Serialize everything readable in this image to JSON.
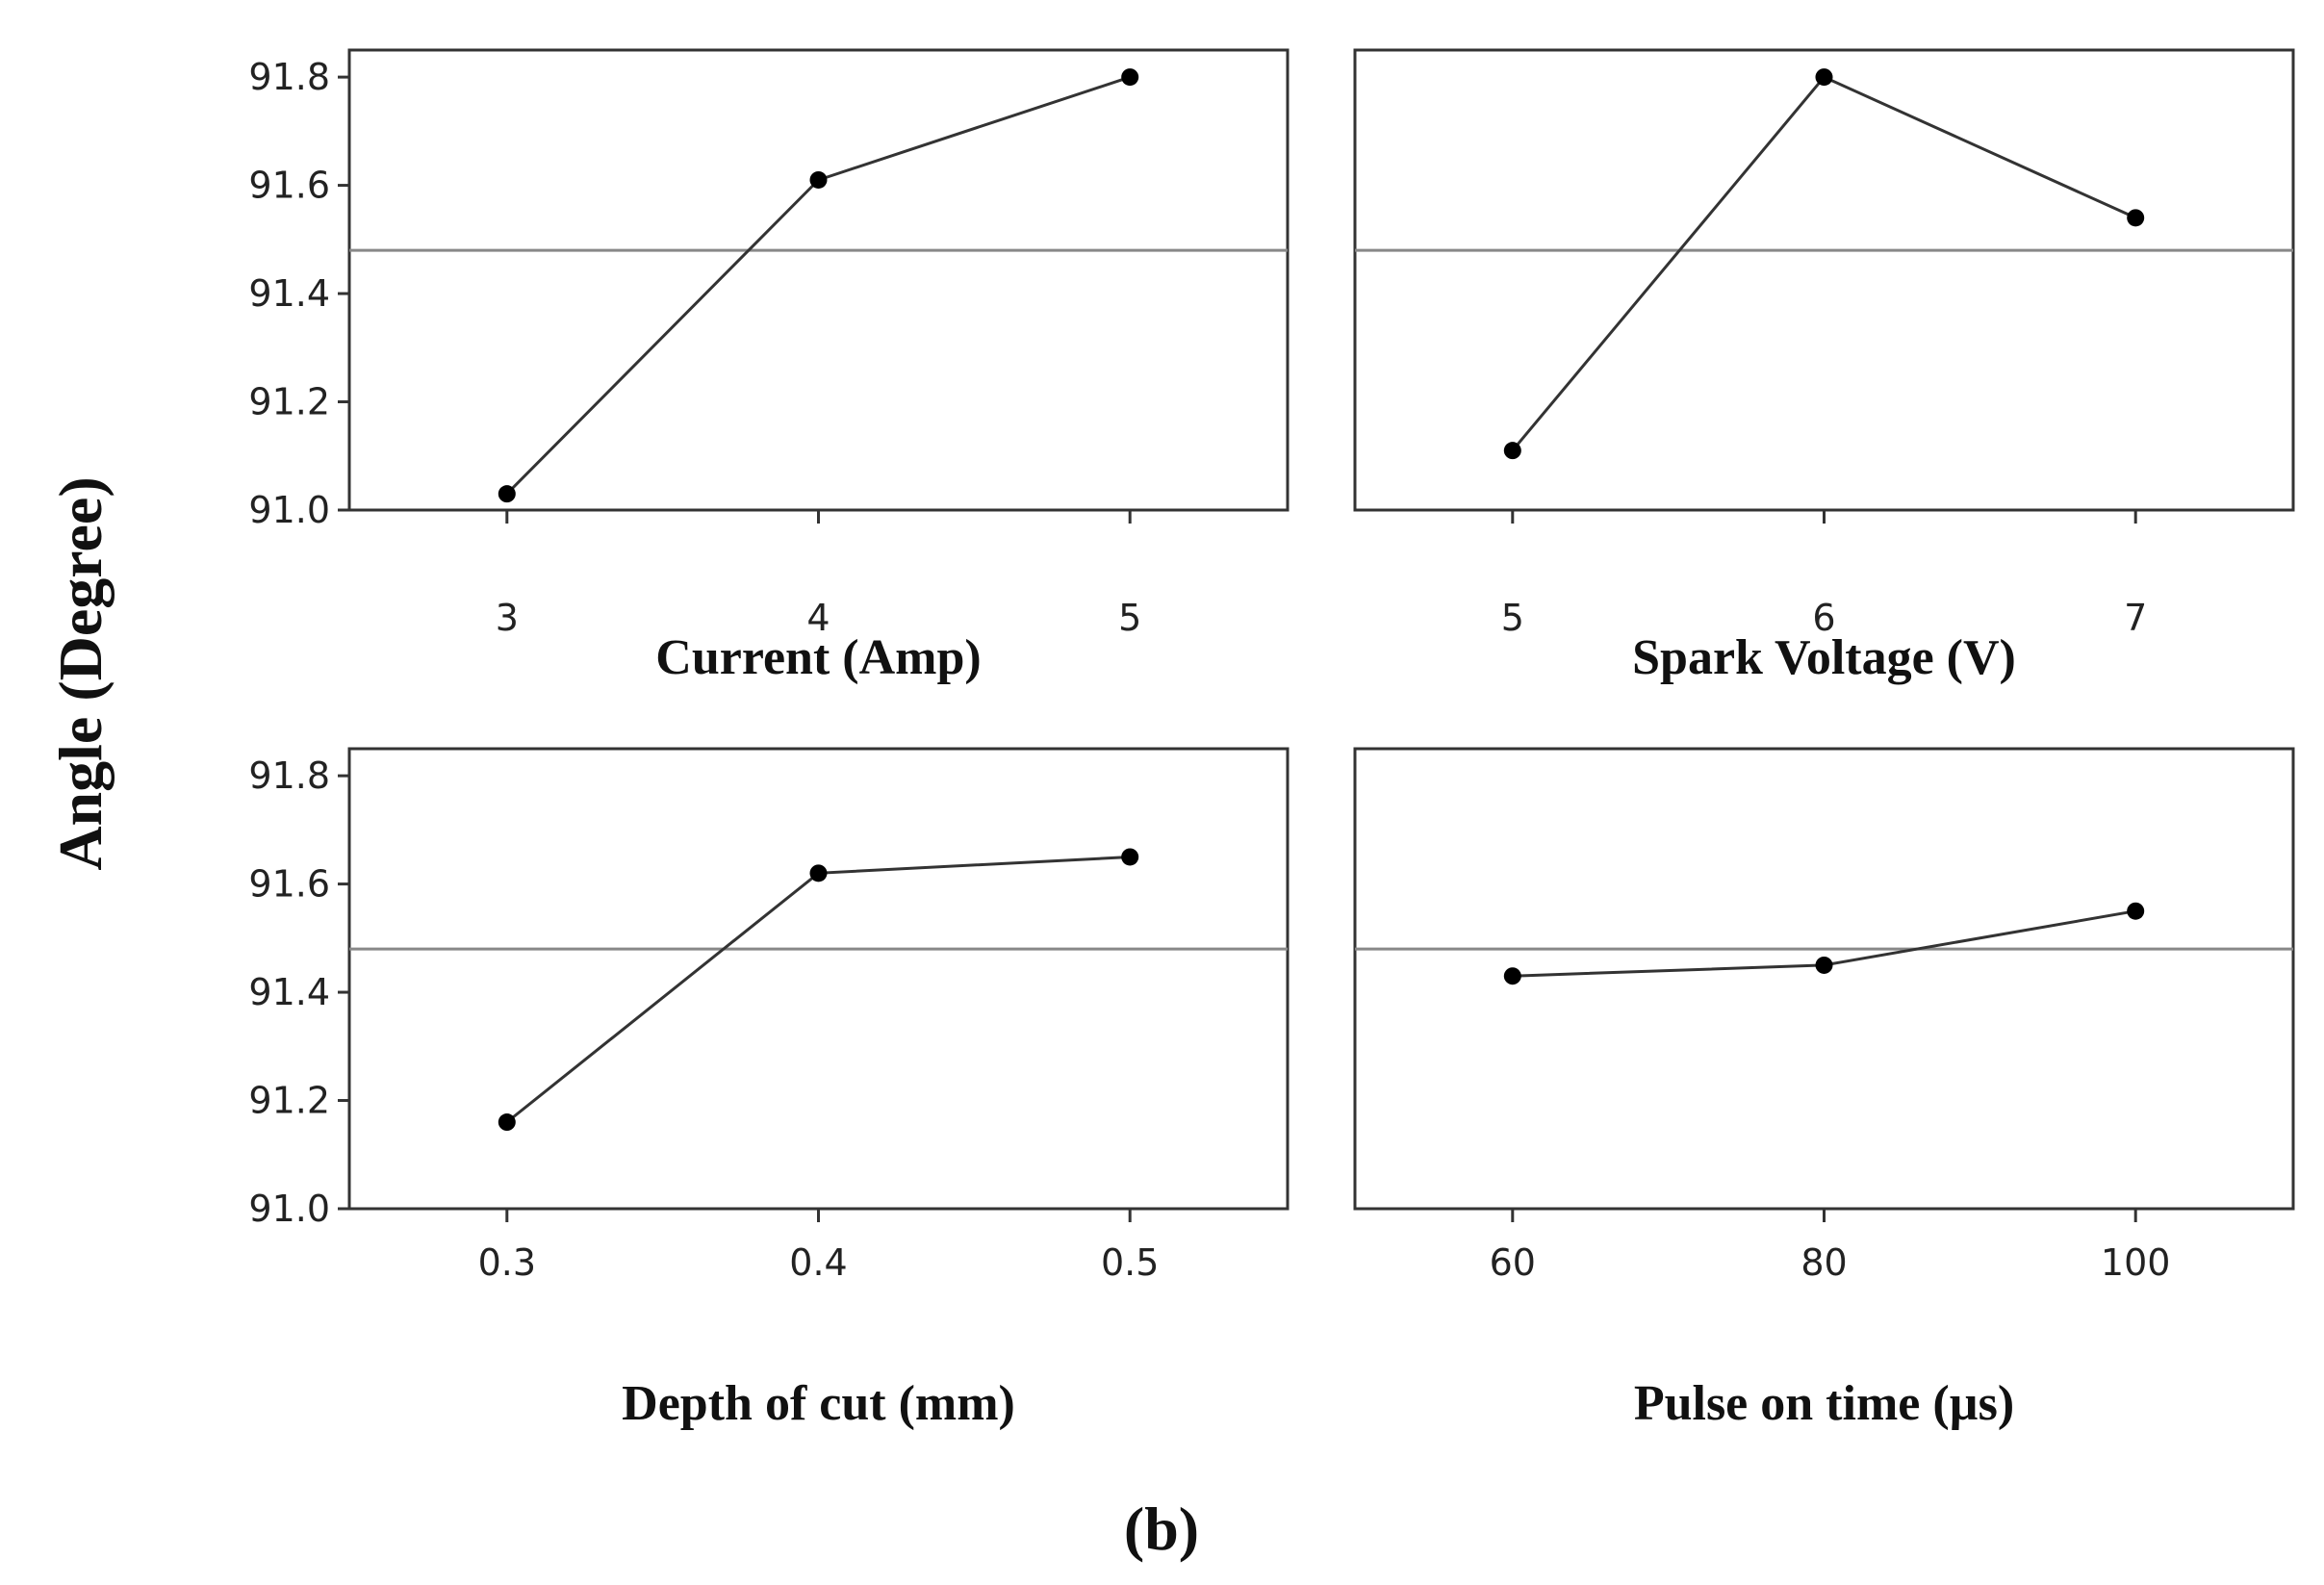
{
  "figure": {
    "ylabel": "Angle (Degree)",
    "caption": "(b)"
  },
  "chart_data": [
    {
      "type": "line",
      "xlabel": "Current (Amp)",
      "x": [
        "3",
        "4",
        "5"
      ],
      "values": [
        91.03,
        91.61,
        91.8
      ],
      "mean": 91.48,
      "ylim": [
        91.0,
        91.85
      ],
      "yticks": [
        "91.0",
        "91.2",
        "91.4",
        "91.6",
        "91.8"
      ],
      "grid": false
    },
    {
      "type": "line",
      "xlabel": "Spark Voltage (V)",
      "x": [
        "5",
        "6",
        "7"
      ],
      "values": [
        91.11,
        91.8,
        91.54
      ],
      "mean": 91.48,
      "ylim": [
        91.0,
        91.85
      ],
      "yticks": [],
      "grid": false
    },
    {
      "type": "line",
      "xlabel": "Depth of cut (mm)",
      "x": [
        "0.3",
        "0.4",
        "0.5"
      ],
      "values": [
        91.16,
        91.62,
        91.65
      ],
      "mean": 91.48,
      "ylim": [
        91.0,
        91.85
      ],
      "yticks": [
        "91.0",
        "91.2",
        "91.4",
        "91.6",
        "91.8"
      ],
      "grid": false
    },
    {
      "type": "line",
      "xlabel": "Pulse on time (µs)",
      "x": [
        "60",
        "80",
        "100"
      ],
      "values": [
        91.43,
        91.45,
        91.55
      ],
      "mean": 91.48,
      "ylim": [
        91.0,
        91.85
      ],
      "yticks": [],
      "grid": false
    }
  ]
}
